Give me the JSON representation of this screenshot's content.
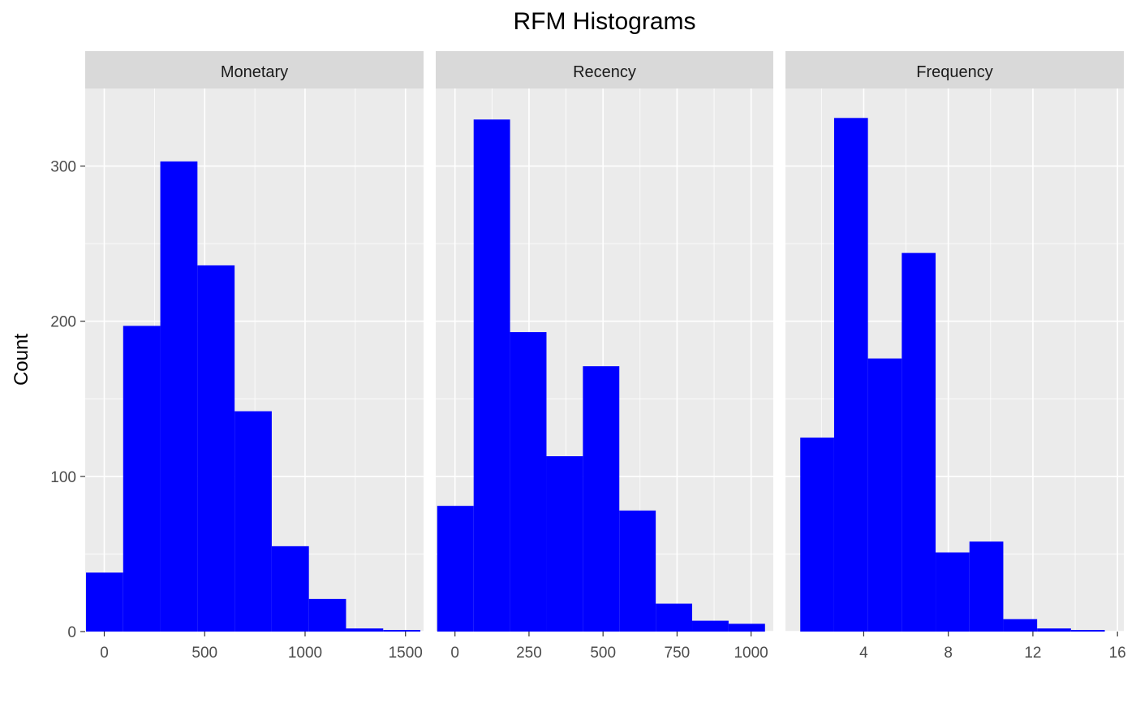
{
  "chart_data": {
    "type": "bar",
    "title": "RFM Histograms",
    "ylabel": "Count",
    "xlabel": "",
    "ylim": [
      0,
      350
    ],
    "y_ticks": [
      0,
      100,
      200,
      300
    ],
    "y_tick_labels": [
      "0",
      "100",
      "200",
      "300"
    ],
    "grid": true,
    "legend": "none",
    "bar_color": "#0000FF",
    "panel_background": "#EBEBEB",
    "strip_background": "#D9D9D9",
    "panels": [
      {
        "name": "Monetary",
        "xlim": [
          -95,
          1590
        ],
        "x_ticks": [
          0,
          500,
          1000,
          1500
        ],
        "x_tick_labels": [
          "0",
          "500",
          "1000",
          "1500"
        ],
        "x_minor_breaks": [
          250,
          750,
          1250
        ],
        "bins": [
          {
            "start": -91,
            "end": 94,
            "count": 38
          },
          {
            "start": 94,
            "end": 279,
            "count": 197
          },
          {
            "start": 279,
            "end": 464,
            "count": 303
          },
          {
            "start": 464,
            "end": 649,
            "count": 236
          },
          {
            "start": 649,
            "end": 834,
            "count": 142
          },
          {
            "start": 834,
            "end": 1019,
            "count": 55
          },
          {
            "start": 1019,
            "end": 1204,
            "count": 21
          },
          {
            "start": 1204,
            "end": 1389,
            "count": 2
          },
          {
            "start": 1389,
            "end": 1574,
            "count": 1
          }
        ]
      },
      {
        "name": "Recency",
        "xlim": [
          -65,
          1075
        ],
        "x_ticks": [
          0,
          250,
          500,
          750,
          1000
        ],
        "x_tick_labels": [
          "0",
          "250",
          "500",
          "750",
          "1000"
        ],
        "x_minor_breaks": [
          125,
          375,
          625,
          875
        ],
        "bins": [
          {
            "start": -60,
            "end": 63,
            "count": 81
          },
          {
            "start": 63,
            "end": 186,
            "count": 330
          },
          {
            "start": 186,
            "end": 309,
            "count": 193
          },
          {
            "start": 309,
            "end": 432,
            "count": 113
          },
          {
            "start": 432,
            "end": 555,
            "count": 171
          },
          {
            "start": 555,
            "end": 678,
            "count": 78
          },
          {
            "start": 678,
            "end": 801,
            "count": 18
          },
          {
            "start": 801,
            "end": 924,
            "count": 7
          },
          {
            "start": 924,
            "end": 1047,
            "count": 5
          }
        ]
      },
      {
        "name": "Frequency",
        "xlim": [
          0.3,
          16.3
        ],
        "x_ticks": [
          4,
          8,
          12,
          16
        ],
        "x_tick_labels": [
          "4",
          "8",
          "12",
          "16"
        ],
        "x_minor_breaks": [
          2,
          6,
          10,
          14
        ],
        "bins": [
          {
            "start": 1.0,
            "end": 2.6,
            "count": 125
          },
          {
            "start": 2.6,
            "end": 4.2,
            "count": 331
          },
          {
            "start": 4.2,
            "end": 5.8,
            "count": 176
          },
          {
            "start": 5.8,
            "end": 7.4,
            "count": 244
          },
          {
            "start": 7.4,
            "end": 9.0,
            "count": 51
          },
          {
            "start": 9.0,
            "end": 10.6,
            "count": 58
          },
          {
            "start": 10.6,
            "end": 12.2,
            "count": 8
          },
          {
            "start": 12.2,
            "end": 13.8,
            "count": 2
          },
          {
            "start": 13.8,
            "end": 15.4,
            "count": 1
          }
        ]
      }
    ]
  }
}
